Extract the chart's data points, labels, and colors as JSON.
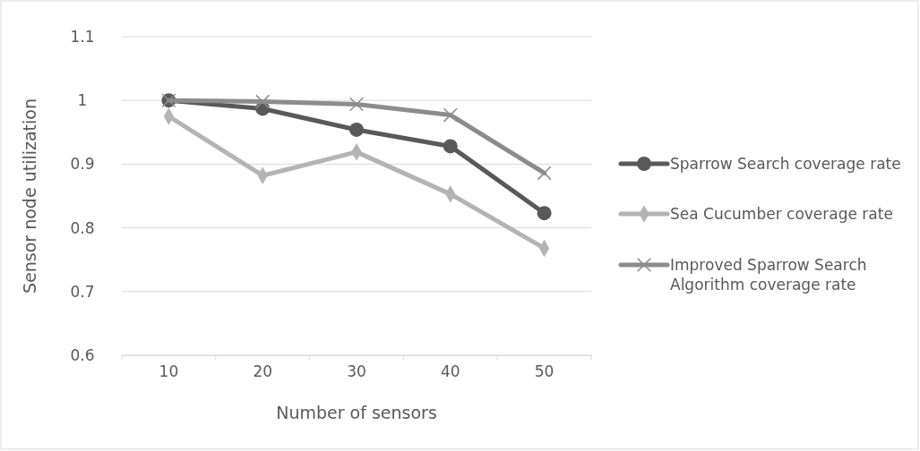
{
  "chart_data": {
    "type": "line",
    "xlabel": "Number of sensors",
    "ylabel": "Sensor node utilization",
    "categories": [
      "10",
      "20",
      "30",
      "40",
      "50"
    ],
    "ylim": [
      0.6,
      1.1
    ],
    "yticks": [
      0.6,
      0.7,
      0.8,
      0.9,
      1,
      1.1
    ],
    "grid": "y",
    "legend": "right",
    "series": [
      {
        "name": "Sparrow Search coverage rate",
        "color": "#595959",
        "marker": "circle",
        "values": [
          1.0,
          0.987,
          0.954,
          0.928,
          0.823
        ]
      },
      {
        "name": "Sea Cucumber coverage rate",
        "color": "#b4b4b4",
        "marker": "diamond",
        "values": [
          0.975,
          0.882,
          0.919,
          0.853,
          0.768
        ]
      },
      {
        "name": "Improved Sparrow Search Algorithm coverage rate",
        "color": "#8c8c8c",
        "marker": "cross",
        "values": [
          1.0,
          0.998,
          0.994,
          0.977,
          0.886
        ]
      }
    ]
  }
}
